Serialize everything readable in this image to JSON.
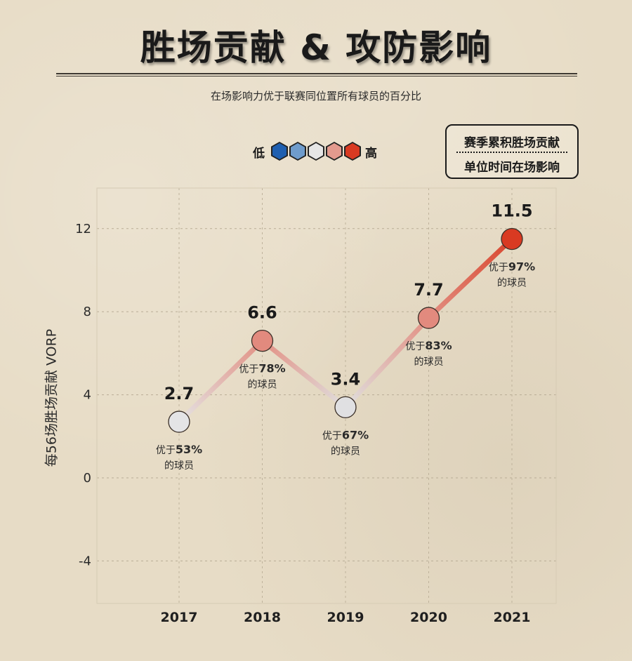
{
  "title": "胜场贡献 & 攻防影响",
  "subtitle": "在场影响力优于联赛同位置所有球员的百分比",
  "legend": {
    "low_label": "低",
    "high_label": "高",
    "colors": [
      "#1f5fb0",
      "#6f9ccc",
      "#e6e6e6",
      "#e39a8e",
      "#d93a22"
    ]
  },
  "key": {
    "line_label": "赛季累积胜场贡献",
    "circle_label": "单位时间在场影响"
  },
  "chart_data": {
    "type": "line",
    "ylabel": "每56场胜场贡献 VORP",
    "ylim": [
      -6,
      14
    ],
    "yticks": [
      -4,
      0,
      4,
      8,
      12
    ],
    "grid": true,
    "categories": [
      "2017",
      "2018",
      "2019",
      "2020",
      "2021"
    ],
    "values": [
      2.7,
      6.6,
      3.4,
      7.7,
      11.5
    ],
    "value_labels": [
      "2.7",
      "6.6",
      "3.4",
      "7.7",
      "11.5"
    ],
    "percentiles": [
      53,
      78,
      67,
      83,
      97
    ],
    "annotation_prefix": "优于",
    "annotation_suffix": "%",
    "annotation_line2": "的球员",
    "point_colors": [
      "#e4e4e6",
      "#e28a7e",
      "#e0e0e2",
      "#e28a7e",
      "#d93a22"
    ]
  }
}
